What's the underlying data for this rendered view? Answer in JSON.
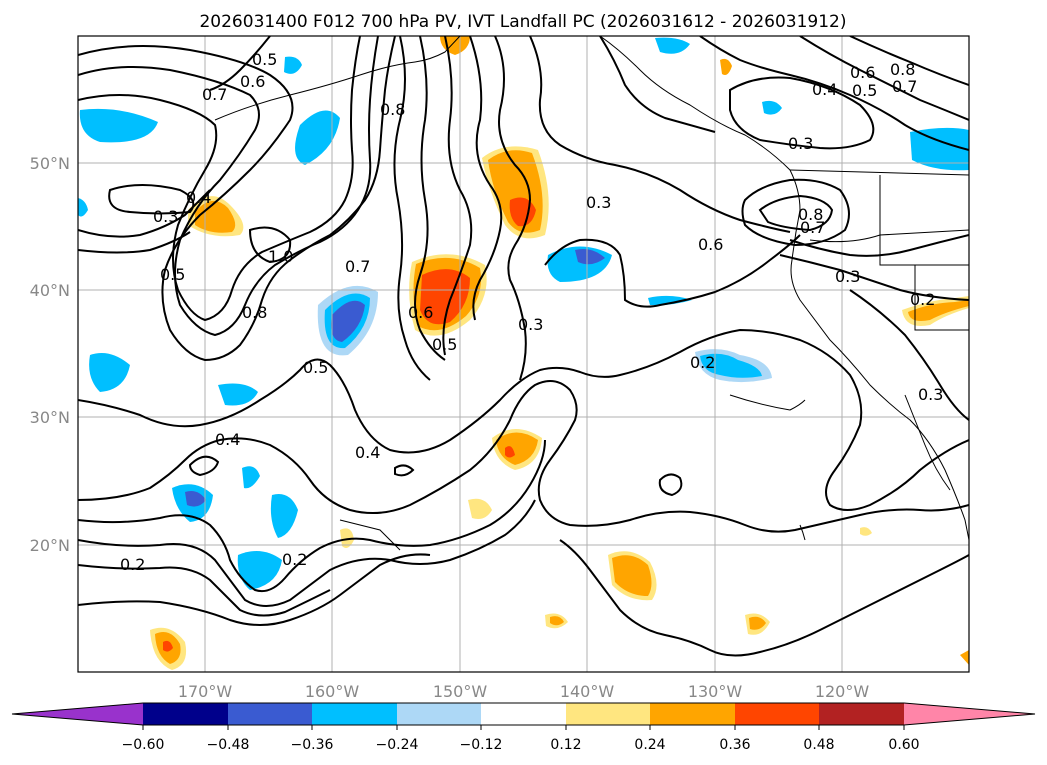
{
  "title": "2026031400 F012 700 hPa PV, IVT Landfall PC (2026031612 - 2026031912)",
  "map": {
    "lat_ticks": [
      "50°N",
      "40°N",
      "30°N",
      "20°N"
    ],
    "lon_ticks": [
      "170°W",
      "160°W",
      "150°W",
      "140°W",
      "130°W",
      "120°W"
    ],
    "contour_labels": [
      "0.5",
      "0.6",
      "0.7",
      "0.8",
      "0.3",
      "0.4",
      "1.0",
      "0.5",
      "0.8",
      "0.7",
      "0.6",
      "0.5",
      "0.3",
      "0.4",
      "0.2",
      "0.2",
      "0.3",
      "0.6",
      "0.8",
      "0.7",
      "0.4",
      "0.5",
      "0.6",
      "0.7",
      "0.8",
      "0.3",
      "0.3",
      "0.2",
      "0.3",
      "0.2",
      "0.5",
      "0.4"
    ]
  },
  "colorbar": {
    "tick_labels": [
      "−0.60",
      "−0.48",
      "−0.36",
      "−0.24",
      "−0.12",
      "0.12",
      "0.24",
      "0.36",
      "0.48",
      "0.60"
    ],
    "colors": {
      "extend_low": "#9932cc",
      "bins": [
        "#00008b",
        "#3a5bd1",
        "#00bfff",
        "#add8f6",
        "#ffffff",
        "#ffe680",
        "#ffa500",
        "#ff4500",
        "#b22222"
      ],
      "extend_high": "#ff85a8"
    }
  }
}
